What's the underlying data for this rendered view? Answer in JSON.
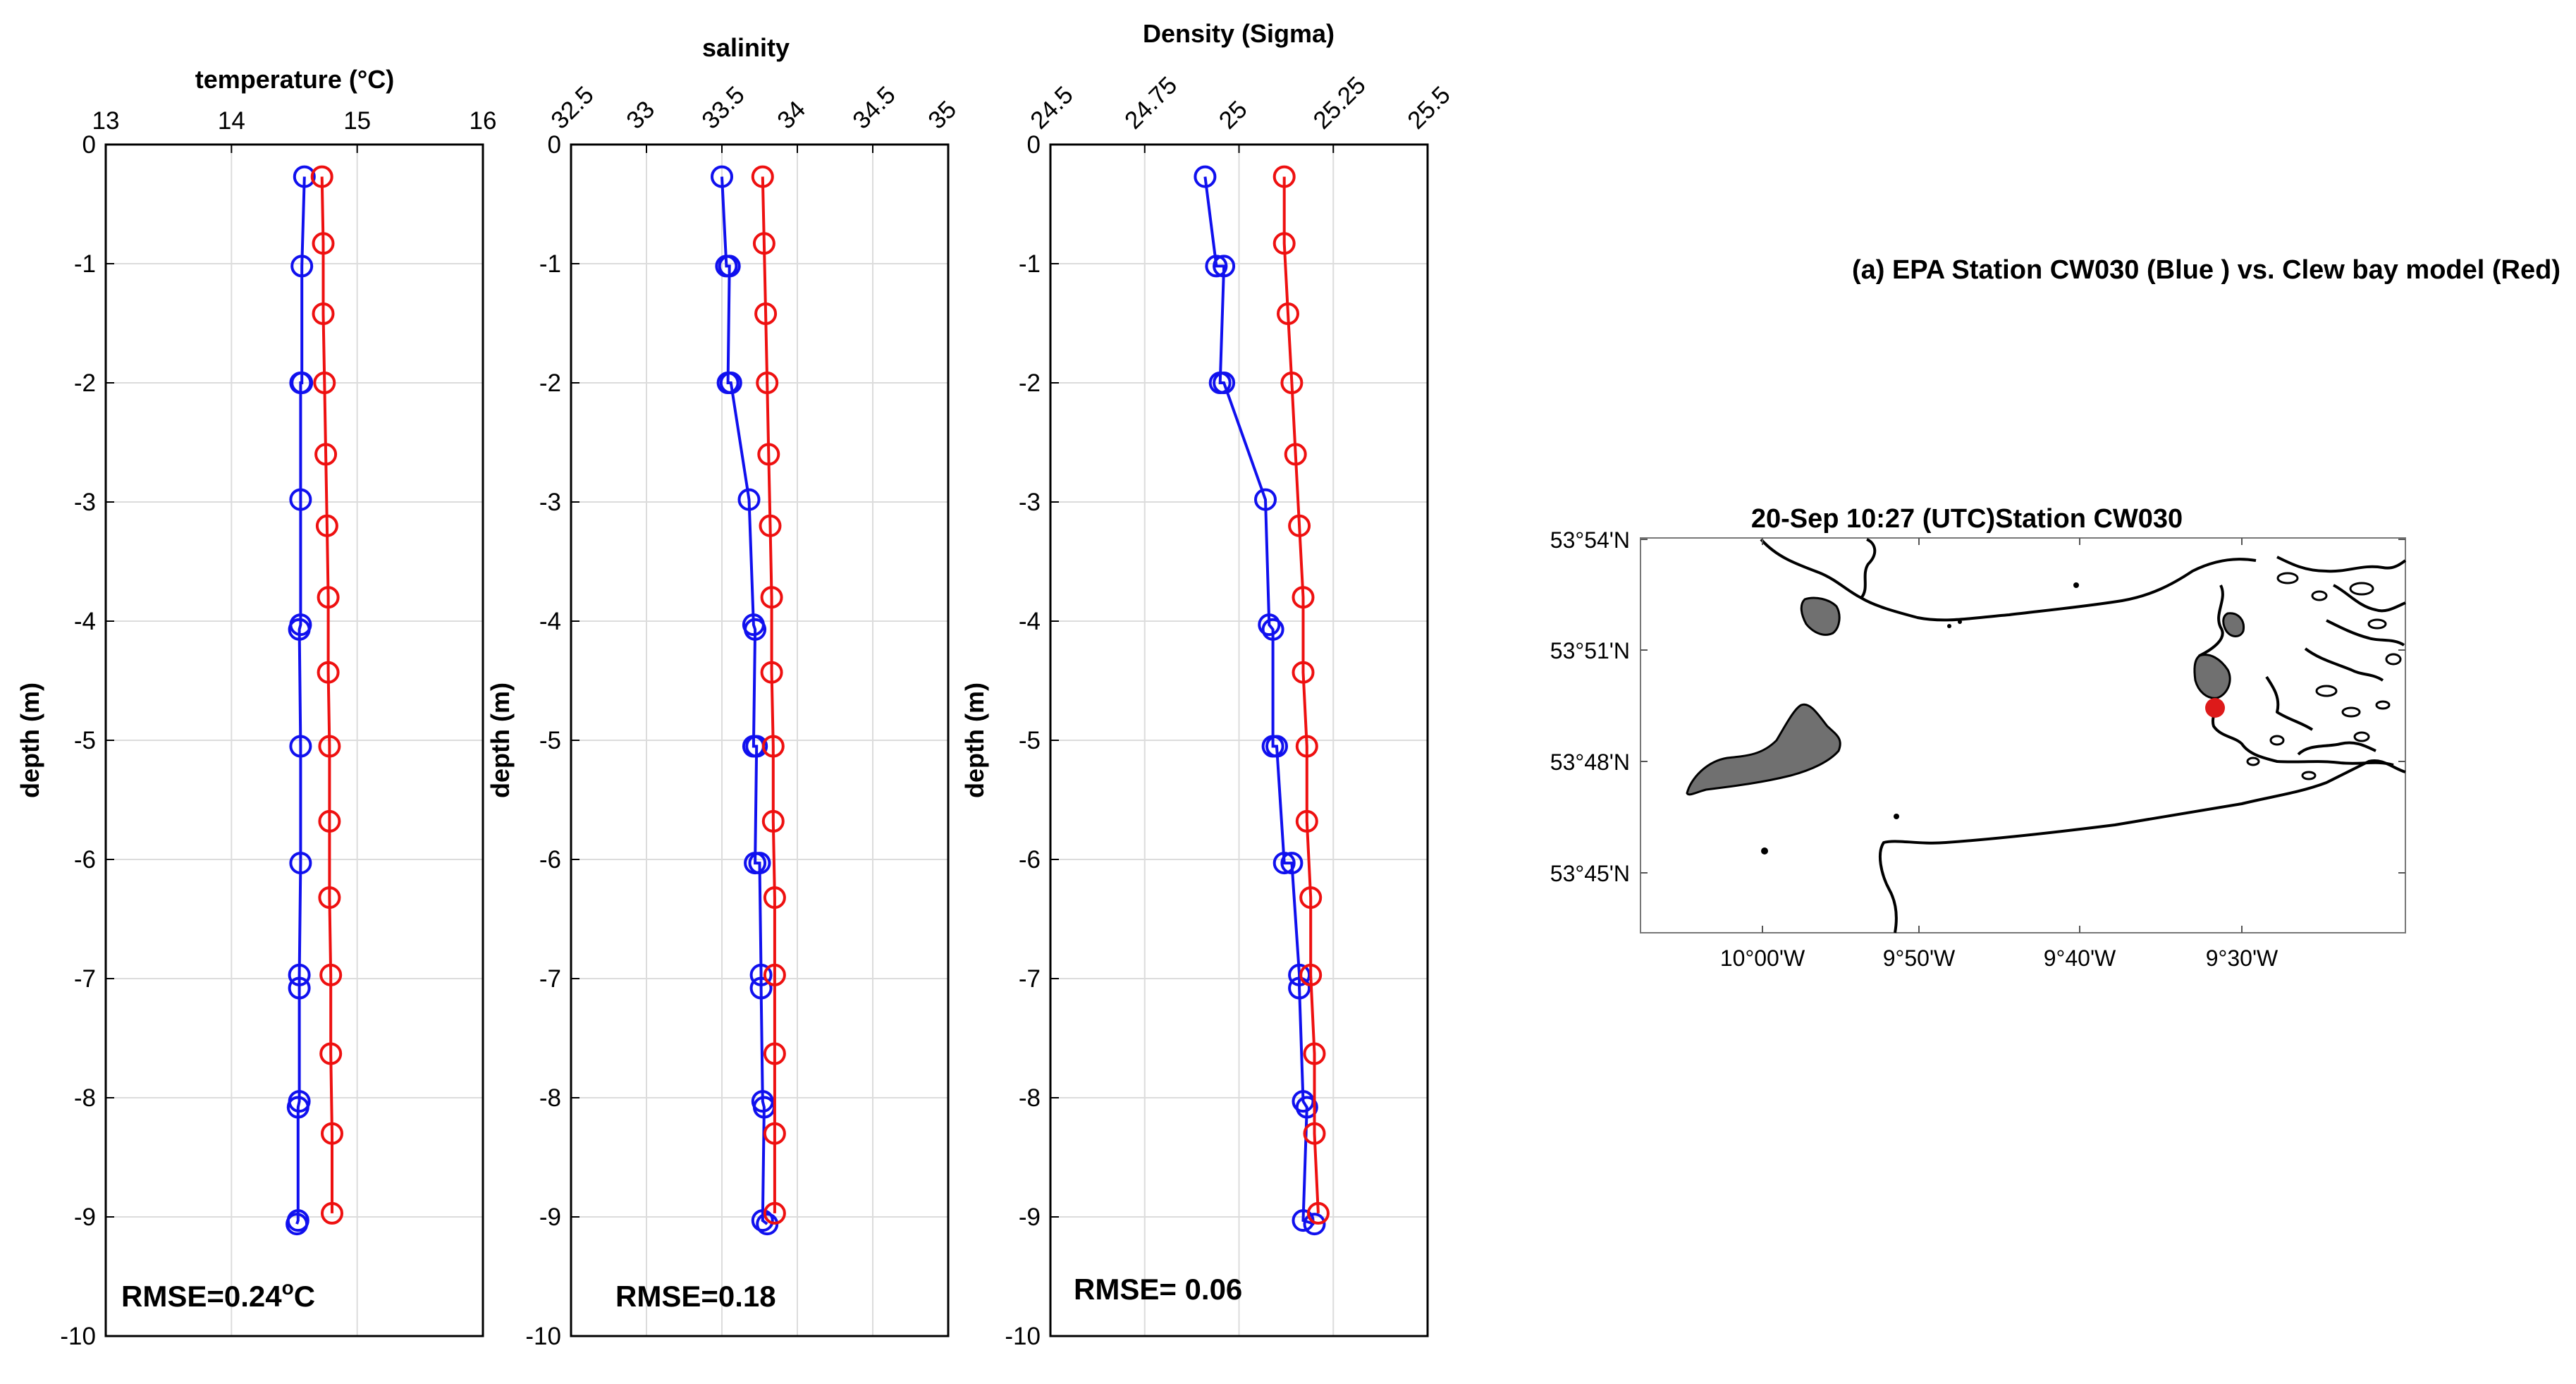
{
  "chart_data": [
    {
      "type": "line",
      "xlabel": "temperature (°C)",
      "ylabel": "depth (m)",
      "xlim": [
        13,
        16
      ],
      "ylim": [
        -10,
        0
      ],
      "xticks": [
        "13",
        "14",
        "15",
        "16"
      ],
      "yticks": [
        "0",
        "-1",
        "-2",
        "-3",
        "-4",
        "-5",
        "-6",
        "-7",
        "-8",
        "-9",
        "-10"
      ],
      "rmse_prefix": "RMSE=0.24",
      "rmse_sup": "o",
      "rmse_suffix": "C",
      "grid": true,
      "series": [
        {
          "color": "#1010ee",
          "points": [
            [
              14.58,
              -0.27
            ],
            [
              14.56,
              -1.02
            ],
            [
              14.56,
              -2.0
            ],
            [
              14.55,
              -2.0
            ],
            [
              14.55,
              -2.98
            ],
            [
              14.55,
              -4.03
            ],
            [
              14.54,
              -4.07
            ],
            [
              14.55,
              -5.05
            ],
            [
              14.55,
              -6.03
            ],
            [
              14.54,
              -6.97
            ],
            [
              14.54,
              -7.08
            ],
            [
              14.54,
              -8.03
            ],
            [
              14.53,
              -8.08
            ],
            [
              14.53,
              -9.03
            ],
            [
              14.52,
              -9.06
            ]
          ]
        },
        {
          "color": "#ee1010",
          "points": [
            [
              14.72,
              -0.27
            ],
            [
              14.73,
              -0.83
            ],
            [
              14.73,
              -1.42
            ],
            [
              14.74,
              -2.0
            ],
            [
              14.75,
              -2.6
            ],
            [
              14.76,
              -3.2
            ],
            [
              14.77,
              -3.8
            ],
            [
              14.77,
              -4.43
            ],
            [
              14.78,
              -5.05
            ],
            [
              14.78,
              -5.68
            ],
            [
              14.78,
              -6.32
            ],
            [
              14.79,
              -6.97
            ],
            [
              14.79,
              -7.63
            ],
            [
              14.8,
              -8.3
            ],
            [
              14.8,
              -8.97
            ]
          ]
        }
      ]
    },
    {
      "type": "line",
      "title": "salinity",
      "ylabel": "depth (m)",
      "xlim": [
        32.5,
        35
      ],
      "ylim": [
        -10,
        0
      ],
      "xticks": [
        "32.5",
        "33",
        "33.5",
        "34",
        "34.5",
        "35"
      ],
      "yticks": [
        "0",
        "-1",
        "-2",
        "-3",
        "-4",
        "-5",
        "-6",
        "-7",
        "-8",
        "-9",
        "-10"
      ],
      "rmse_text": "RMSE=0.18",
      "grid": true,
      "series": [
        {
          "color": "#1010ee",
          "points": [
            [
              33.5,
              -0.27
            ],
            [
              33.53,
              -1.02
            ],
            [
              33.55,
              -1.02
            ],
            [
              33.54,
              -2.0
            ],
            [
              33.56,
              -2.0
            ],
            [
              33.68,
              -2.98
            ],
            [
              33.71,
              -4.03
            ],
            [
              33.72,
              -4.07
            ],
            [
              33.71,
              -5.05
            ],
            [
              33.73,
              -5.05
            ],
            [
              33.72,
              -6.03
            ],
            [
              33.75,
              -6.03
            ],
            [
              33.76,
              -6.97
            ],
            [
              33.76,
              -7.08
            ],
            [
              33.77,
              -8.03
            ],
            [
              33.78,
              -8.08
            ],
            [
              33.77,
              -9.03
            ],
            [
              33.8,
              -9.06
            ]
          ]
        },
        {
          "color": "#ee1010",
          "points": [
            [
              33.77,
              -0.27
            ],
            [
              33.78,
              -0.83
            ],
            [
              33.79,
              -1.42
            ],
            [
              33.8,
              -2.0
            ],
            [
              33.81,
              -2.6
            ],
            [
              33.82,
              -3.2
            ],
            [
              33.83,
              -3.8
            ],
            [
              33.83,
              -4.43
            ],
            [
              33.84,
              -5.05
            ],
            [
              33.84,
              -5.68
            ],
            [
              33.85,
              -6.32
            ],
            [
              33.85,
              -6.97
            ],
            [
              33.85,
              -7.63
            ],
            [
              33.85,
              -8.3
            ],
            [
              33.85,
              -8.97
            ]
          ]
        }
      ]
    },
    {
      "type": "line",
      "title": "Density (Sigma)",
      "ylabel": "depth (m)",
      "xlim": [
        24.5,
        25.5
      ],
      "ylim": [
        -10,
        0
      ],
      "xticks": [
        "24.5",
        "24.75",
        "25",
        "25.25",
        "25.5"
      ],
      "yticks": [
        "0",
        "-1",
        "-2",
        "-3",
        "-4",
        "-5",
        "-6",
        "-7",
        "-8",
        "-9",
        "-10"
      ],
      "rmse_text": "RMSE= 0.06",
      "grid": true,
      "series": [
        {
          "color": "#1010ee",
          "points": [
            [
              24.91,
              -0.27
            ],
            [
              24.94,
              -1.02
            ],
            [
              24.96,
              -1.02
            ],
            [
              24.95,
              -2.0
            ],
            [
              24.96,
              -2.0
            ],
            [
              25.07,
              -2.98
            ],
            [
              25.08,
              -4.03
            ],
            [
              25.09,
              -4.07
            ],
            [
              25.09,
              -5.05
            ],
            [
              25.1,
              -5.05
            ],
            [
              25.12,
              -6.03
            ],
            [
              25.14,
              -6.03
            ],
            [
              25.16,
              -6.97
            ],
            [
              25.16,
              -7.08
            ],
            [
              25.17,
              -8.03
            ],
            [
              25.18,
              -8.08
            ],
            [
              25.17,
              -9.03
            ],
            [
              25.2,
              -9.06
            ]
          ]
        },
        {
          "color": "#ee1010",
          "points": [
            [
              25.12,
              -0.27
            ],
            [
              25.12,
              -0.83
            ],
            [
              25.13,
              -1.42
            ],
            [
              25.14,
              -2.0
            ],
            [
              25.15,
              -2.6
            ],
            [
              25.16,
              -3.2
            ],
            [
              25.17,
              -3.8
            ],
            [
              25.17,
              -4.43
            ],
            [
              25.18,
              -5.05
            ],
            [
              25.18,
              -5.68
            ],
            [
              25.19,
              -6.32
            ],
            [
              25.19,
              -6.97
            ],
            [
              25.2,
              -7.63
            ],
            [
              25.2,
              -8.3
            ],
            [
              25.21,
              -8.97
            ]
          ]
        }
      ]
    }
  ],
  "legend_title": "(a) EPA Station CW030 (Blue ) vs. Clew bay model (Red)",
  "map": {
    "title": "20-Sep 10:27 (UTC)Station CW030",
    "lat_ticks": [
      "53°54'N",
      "53°51'N",
      "53°48'N",
      "53°45'N"
    ],
    "lon_ticks": [
      "10°00'W",
      "9°50'W",
      "9°40'W",
      "9°30'W"
    ],
    "station_color": "#dd1a1a",
    "land_color": "#707070"
  }
}
